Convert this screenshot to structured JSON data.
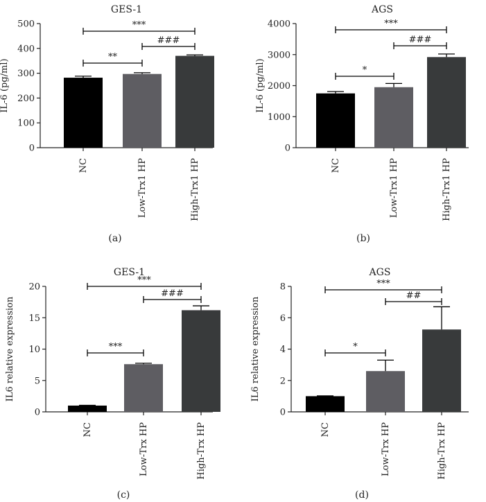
{
  "colors": {
    "bar": [
      "#000000",
      "#5e5d62",
      "#383a3b"
    ],
    "axis": "#222222"
  },
  "chart_data": [
    {
      "type": "bar",
      "title": "GES-1",
      "panel": "(a)",
      "ylabel": "IL-6 (pg/ml)",
      "ylim": [
        0,
        500
      ],
      "yticks": [
        0,
        100,
        200,
        300,
        400,
        500
      ],
      "categories": [
        "NC",
        "Low-Trx1 HP",
        "High-Trx1 HP"
      ],
      "values": [
        282,
        297,
        370
      ],
      "errors": [
        6,
        5,
        4
      ],
      "significance": [
        {
          "from": 0,
          "to": 1,
          "label": "**"
        },
        {
          "from": 1,
          "to": 2,
          "label": "###"
        },
        {
          "from": 0,
          "to": 2,
          "label": "***"
        }
      ]
    },
    {
      "type": "bar",
      "title": "AGS",
      "panel": "(b)",
      "ylabel": "IL-6 (pg/ml)",
      "ylim": [
        0,
        4000
      ],
      "yticks": [
        0,
        1000,
        2000,
        3000,
        4000
      ],
      "categories": [
        "NC",
        "Low-Trx1 HP",
        "High-Trx1 HP"
      ],
      "values": [
        1750,
        1950,
        2920
      ],
      "errors": [
        60,
        120,
        100
      ],
      "significance": [
        {
          "from": 0,
          "to": 1,
          "label": "*"
        },
        {
          "from": 1,
          "to": 2,
          "label": "###"
        },
        {
          "from": 0,
          "to": 2,
          "label": "***"
        }
      ]
    },
    {
      "type": "bar",
      "title": "GES-1",
      "panel": "(c)",
      "ylabel": "IL6 relative expression",
      "ylim": [
        0,
        20
      ],
      "yticks": [
        0,
        5,
        10,
        15,
        20
      ],
      "categories": [
        "NC",
        "Low-Trx HP",
        "High-Trx HP"
      ],
      "values": [
        1.0,
        7.6,
        16.2
      ],
      "errors": [
        0.05,
        0.15,
        0.7
      ],
      "significance": [
        {
          "from": 0,
          "to": 1,
          "label": "***"
        },
        {
          "from": 1,
          "to": 2,
          "label": "###"
        },
        {
          "from": 0,
          "to": 2,
          "label": "***"
        }
      ]
    },
    {
      "type": "bar",
      "title": "AGS",
      "panel": "(d)",
      "ylabel": "IL6 relative expression",
      "ylim": [
        0,
        8
      ],
      "yticks": [
        0,
        2,
        4,
        6,
        8
      ],
      "categories": [
        "NC",
        "Low-Trx HP",
        "High-Trx HP"
      ],
      "values": [
        1.0,
        2.6,
        5.25
      ],
      "errors": [
        0.02,
        0.7,
        1.45
      ],
      "significance": [
        {
          "from": 0,
          "to": 1,
          "label": "*"
        },
        {
          "from": 1,
          "to": 2,
          "label": "##"
        },
        {
          "from": 0,
          "to": 2,
          "label": "***"
        }
      ]
    }
  ]
}
